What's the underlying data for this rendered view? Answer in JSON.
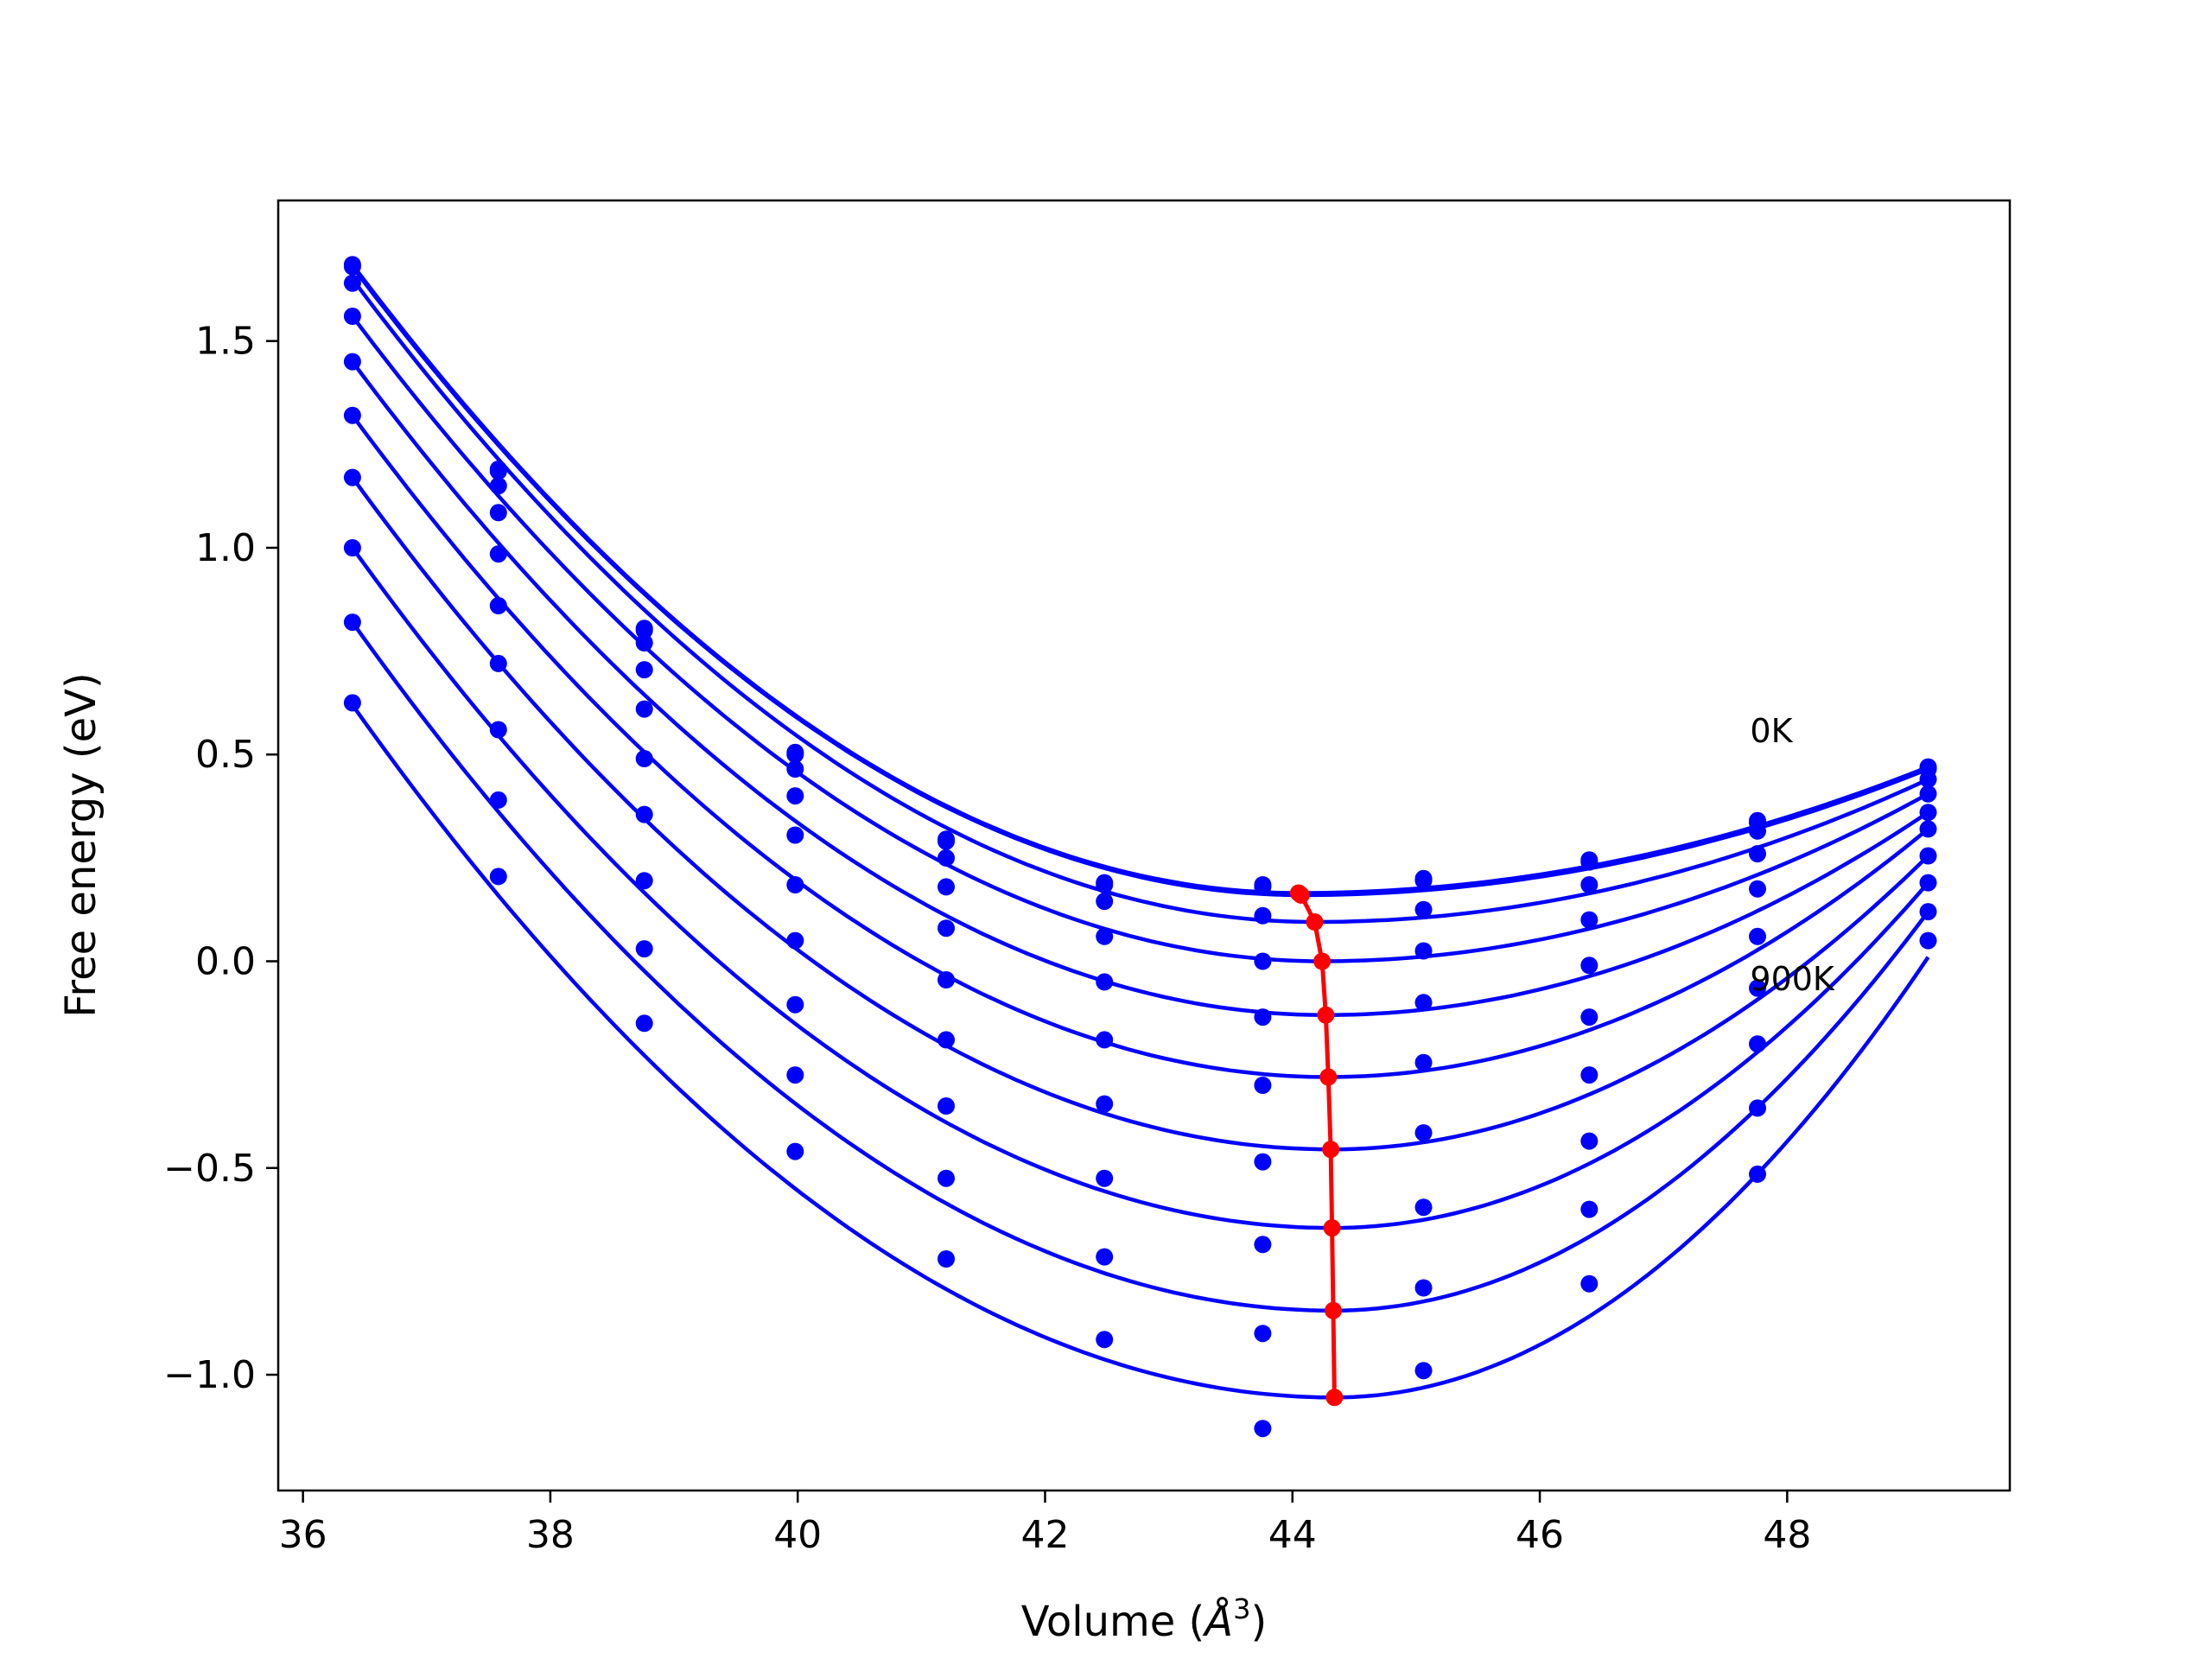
{
  "chart_data": {
    "type": "scatter",
    "title": "",
    "xlabel": "Volume (",
    "xlabel_unit": "Å",
    "xlabel_sup": "3",
    "xlabel_close": ")",
    "ylabel": "Free energy (eV)",
    "xlim": [
      35.8,
      49.8
    ],
    "ylim": [
      -1.28,
      1.84
    ],
    "xticks": [
      36,
      38,
      40,
      42,
      44,
      46,
      48
    ],
    "xtick_labels": [
      "36",
      "38",
      "40",
      "42",
      "44",
      "46",
      "48"
    ],
    "yticks": [
      -1.0,
      -0.5,
      0.0,
      0.5,
      1.0,
      1.5
    ],
    "ytick_labels": [
      "−1.0",
      "−0.5",
      "0.0",
      "0.5",
      "1.0",
      "1.5"
    ],
    "grid": false,
    "colors": {
      "series": "#0000ff",
      "minimum_line": "#ff0000",
      "axes": "#000000"
    },
    "volumes": [
      36.4,
      37.58,
      38.76,
      39.98,
      41.2,
      42.48,
      43.76,
      45.06,
      46.4,
      47.76,
      49.14
    ],
    "fit_range": [
      36.4,
      49.14
    ],
    "annotations": [
      {
        "text": "0K",
        "x": 47.7,
        "y": 0.53
      },
      {
        "text": "900K",
        "x": 47.7,
        "y": -0.07
      }
    ],
    "series": [
      {
        "points": [
          1.685,
          1.19,
          0.805,
          0.505,
          0.295,
          0.19,
          0.185,
          0.2,
          0.245,
          0.34,
          0.47
        ],
        "fit_min_x": 44.05,
        "fit_min_y": 0.165,
        "fit_y_start": 1.685,
        "fit_y_end": 0.47
      },
      {
        "points": [
          1.68,
          1.185,
          0.8,
          0.5,
          0.29,
          0.185,
          0.18,
          0.195,
          0.24,
          0.335,
          0.465
        ],
        "fit_min_x": 44.07,
        "fit_min_y": 0.16,
        "fit_y_start": 1.68,
        "fit_y_end": 0.465
      },
      {
        "points": [
          1.64,
          1.15,
          0.77,
          0.465,
          0.25,
          0.145,
          0.11,
          0.125,
          0.185,
          0.315,
          0.44
        ],
        "fit_min_x": 44.18,
        "fit_min_y": 0.095,
        "fit_y_start": 1.65,
        "fit_y_end": 0.44
      },
      {
        "points": [
          1.56,
          1.085,
          0.705,
          0.4,
          0.18,
          0.06,
          0.0,
          0.025,
          0.1,
          0.26,
          0.405
        ],
        "fit_min_x": 44.24,
        "fit_min_y": 0.0,
        "fit_y_start": 1.56,
        "fit_y_end": 0.405
      },
      {
        "points": [
          1.45,
          0.985,
          0.61,
          0.305,
          0.08,
          -0.05,
          -0.135,
          -0.1,
          -0.01,
          0.175,
          0.36
        ],
        "fit_min_x": 44.27,
        "fit_min_y": -0.13,
        "fit_y_start": 1.45,
        "fit_y_end": 0.36
      },
      {
        "points": [
          1.32,
          0.86,
          0.49,
          0.185,
          -0.045,
          -0.19,
          -0.3,
          -0.245,
          -0.135,
          0.06,
          0.32
        ],
        "fit_min_x": 44.29,
        "fit_min_y": -0.28,
        "fit_y_start": 1.32,
        "fit_y_end": 0.32
      },
      {
        "points": [
          1.17,
          0.72,
          0.355,
          0.05,
          -0.19,
          -0.345,
          -0.485,
          -0.415,
          -0.275,
          -0.065,
          0.255
        ],
        "fit_min_x": 44.31,
        "fit_min_y": -0.455,
        "fit_y_start": 1.17,
        "fit_y_end": 0.255
      },
      {
        "points": [
          1.0,
          0.56,
          0.195,
          -0.105,
          -0.35,
          -0.525,
          -0.685,
          -0.595,
          -0.435,
          -0.2,
          0.19
        ],
        "fit_min_x": 44.32,
        "fit_min_y": -0.645,
        "fit_y_start": 1.0,
        "fit_y_end": 0.19
      },
      {
        "points": [
          0.82,
          0.39,
          0.03,
          -0.275,
          -0.525,
          -0.715,
          -0.9,
          -0.79,
          -0.6,
          -0.355,
          0.12
        ],
        "fit_min_x": 44.33,
        "fit_min_y": -0.845,
        "fit_y_start": 0.82,
        "fit_y_end": 0.12
      },
      {
        "points": [
          0.625,
          0.205,
          -0.15,
          -0.46,
          -0.72,
          -0.915,
          -1.13,
          -0.99,
          -0.78,
          -0.515,
          0.05
        ],
        "fit_min_x": 44.34,
        "fit_min_y": -1.055,
        "fit_y_start": 0.62,
        "fit_y_end": 0.01
      }
    ],
    "minimum_line": {
      "x": [
        44.05,
        44.07,
        44.18,
        44.24,
        44.27,
        44.29,
        44.31,
        44.32,
        44.33,
        44.34
      ],
      "y": [
        0.165,
        0.16,
        0.095,
        0.0,
        -0.13,
        -0.28,
        -0.455,
        -0.645,
        -0.845,
        -1.055
      ]
    }
  }
}
